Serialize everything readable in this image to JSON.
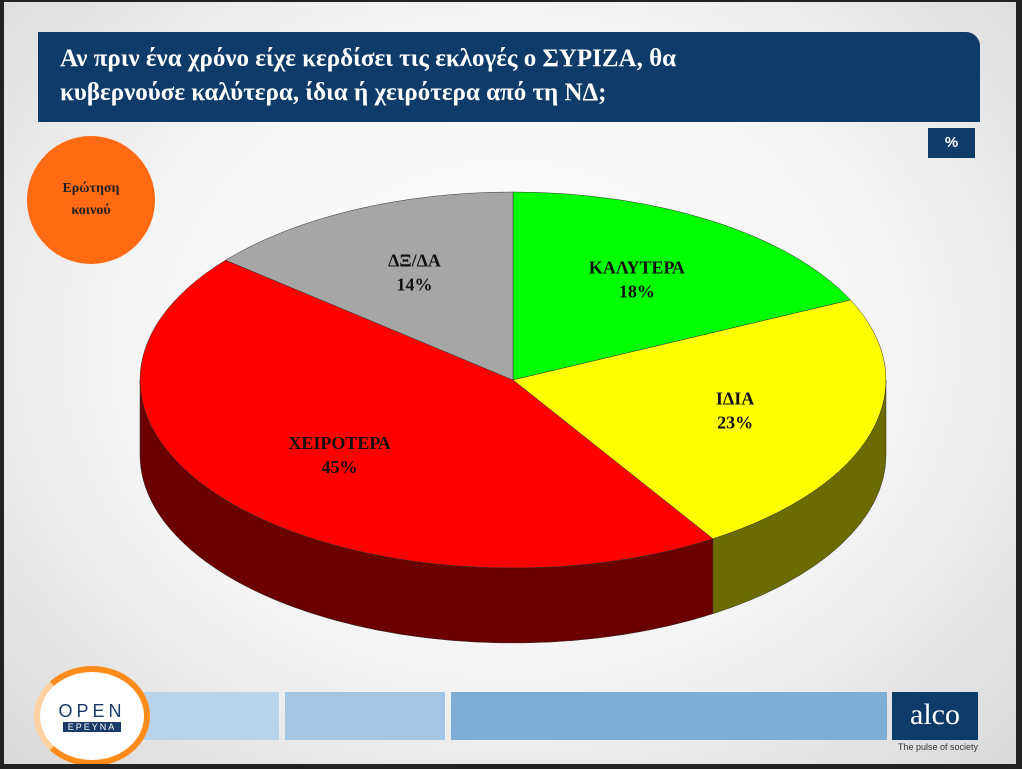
{
  "header": {
    "title": "Αν πριν ένα χρόνο είχε κερδίσει τις εκλογές ο ΣΥΡΙΖΑ, θα κυβερνούσε καλύτερα, ίδια ή χειρότερα από τη ΝΔ;",
    "unit_badge": "%"
  },
  "badge": "Ερώτηση κοινού",
  "logos": {
    "open": "OPEN",
    "open_sub": "ΕΡΕΥΝΑ",
    "alco": "alco",
    "alco_tagline": "The pulse of society"
  },
  "chart_data": {
    "type": "pie",
    "categories": [
      "ΚΑΛΥΤΕΡΑ",
      "ΙΔΙΑ",
      "ΧΕΙΡΟΤΕΡΑ",
      "ΔΞ/ΔΑ"
    ],
    "values": [
      18,
      23,
      45,
      14
    ],
    "value_labels": [
      "18%",
      "23%",
      "45%",
      "14%"
    ],
    "colors": [
      "#00ff00",
      "#ffff00",
      "#ff0000",
      "#a6a6a6"
    ]
  }
}
